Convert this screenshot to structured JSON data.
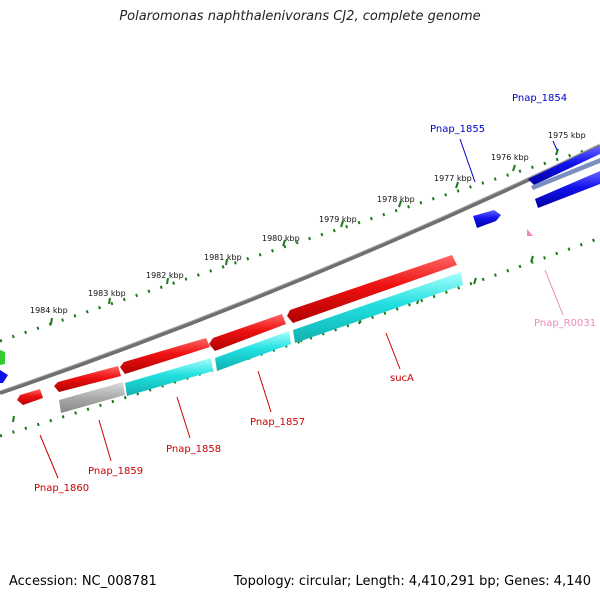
{
  "title": "Polaromonas naphthalenivorans CJ2, complete genome",
  "footer": {
    "accession": "Accession: NC_008781",
    "summary": "Topology: circular; Length: 4,410,291 bp; Genes: 4,140"
  },
  "ticks": [
    "1975 kbp",
    "1976 kbp",
    "1977 kbp",
    "1978 kbp",
    "1979 kbp",
    "1980 kbp",
    "1981 kbp",
    "1982 kbp",
    "1983 kbp",
    "1984 kbp"
  ],
  "genes": [
    {
      "label": "Pnap_1854",
      "color": "#0000cc"
    },
    {
      "label": "Pnap_1855",
      "color": "#0000cc"
    },
    {
      "label": "Pnap_R0031",
      "color": "#ee88bb"
    },
    {
      "label": "sucA",
      "color": "#cc0000"
    },
    {
      "label": "Pnap_1857",
      "color": "#cc0000"
    },
    {
      "label": "Pnap_1858",
      "color": "#cc0000"
    },
    {
      "label": "Pnap_1859",
      "color": "#cc0000"
    },
    {
      "label": "Pnap_1860",
      "color": "#cc0000"
    }
  ],
  "colors": {
    "forward_cds": "#ee1111",
    "reverse_cds": "#1111ee",
    "cog_cyan": "#22dddd",
    "cog_gray": "#aaaaaa",
    "backbone": "#777777",
    "tick": "#1a7a1a",
    "rna": "#ee88bb",
    "green_feature": "#33cc33"
  }
}
